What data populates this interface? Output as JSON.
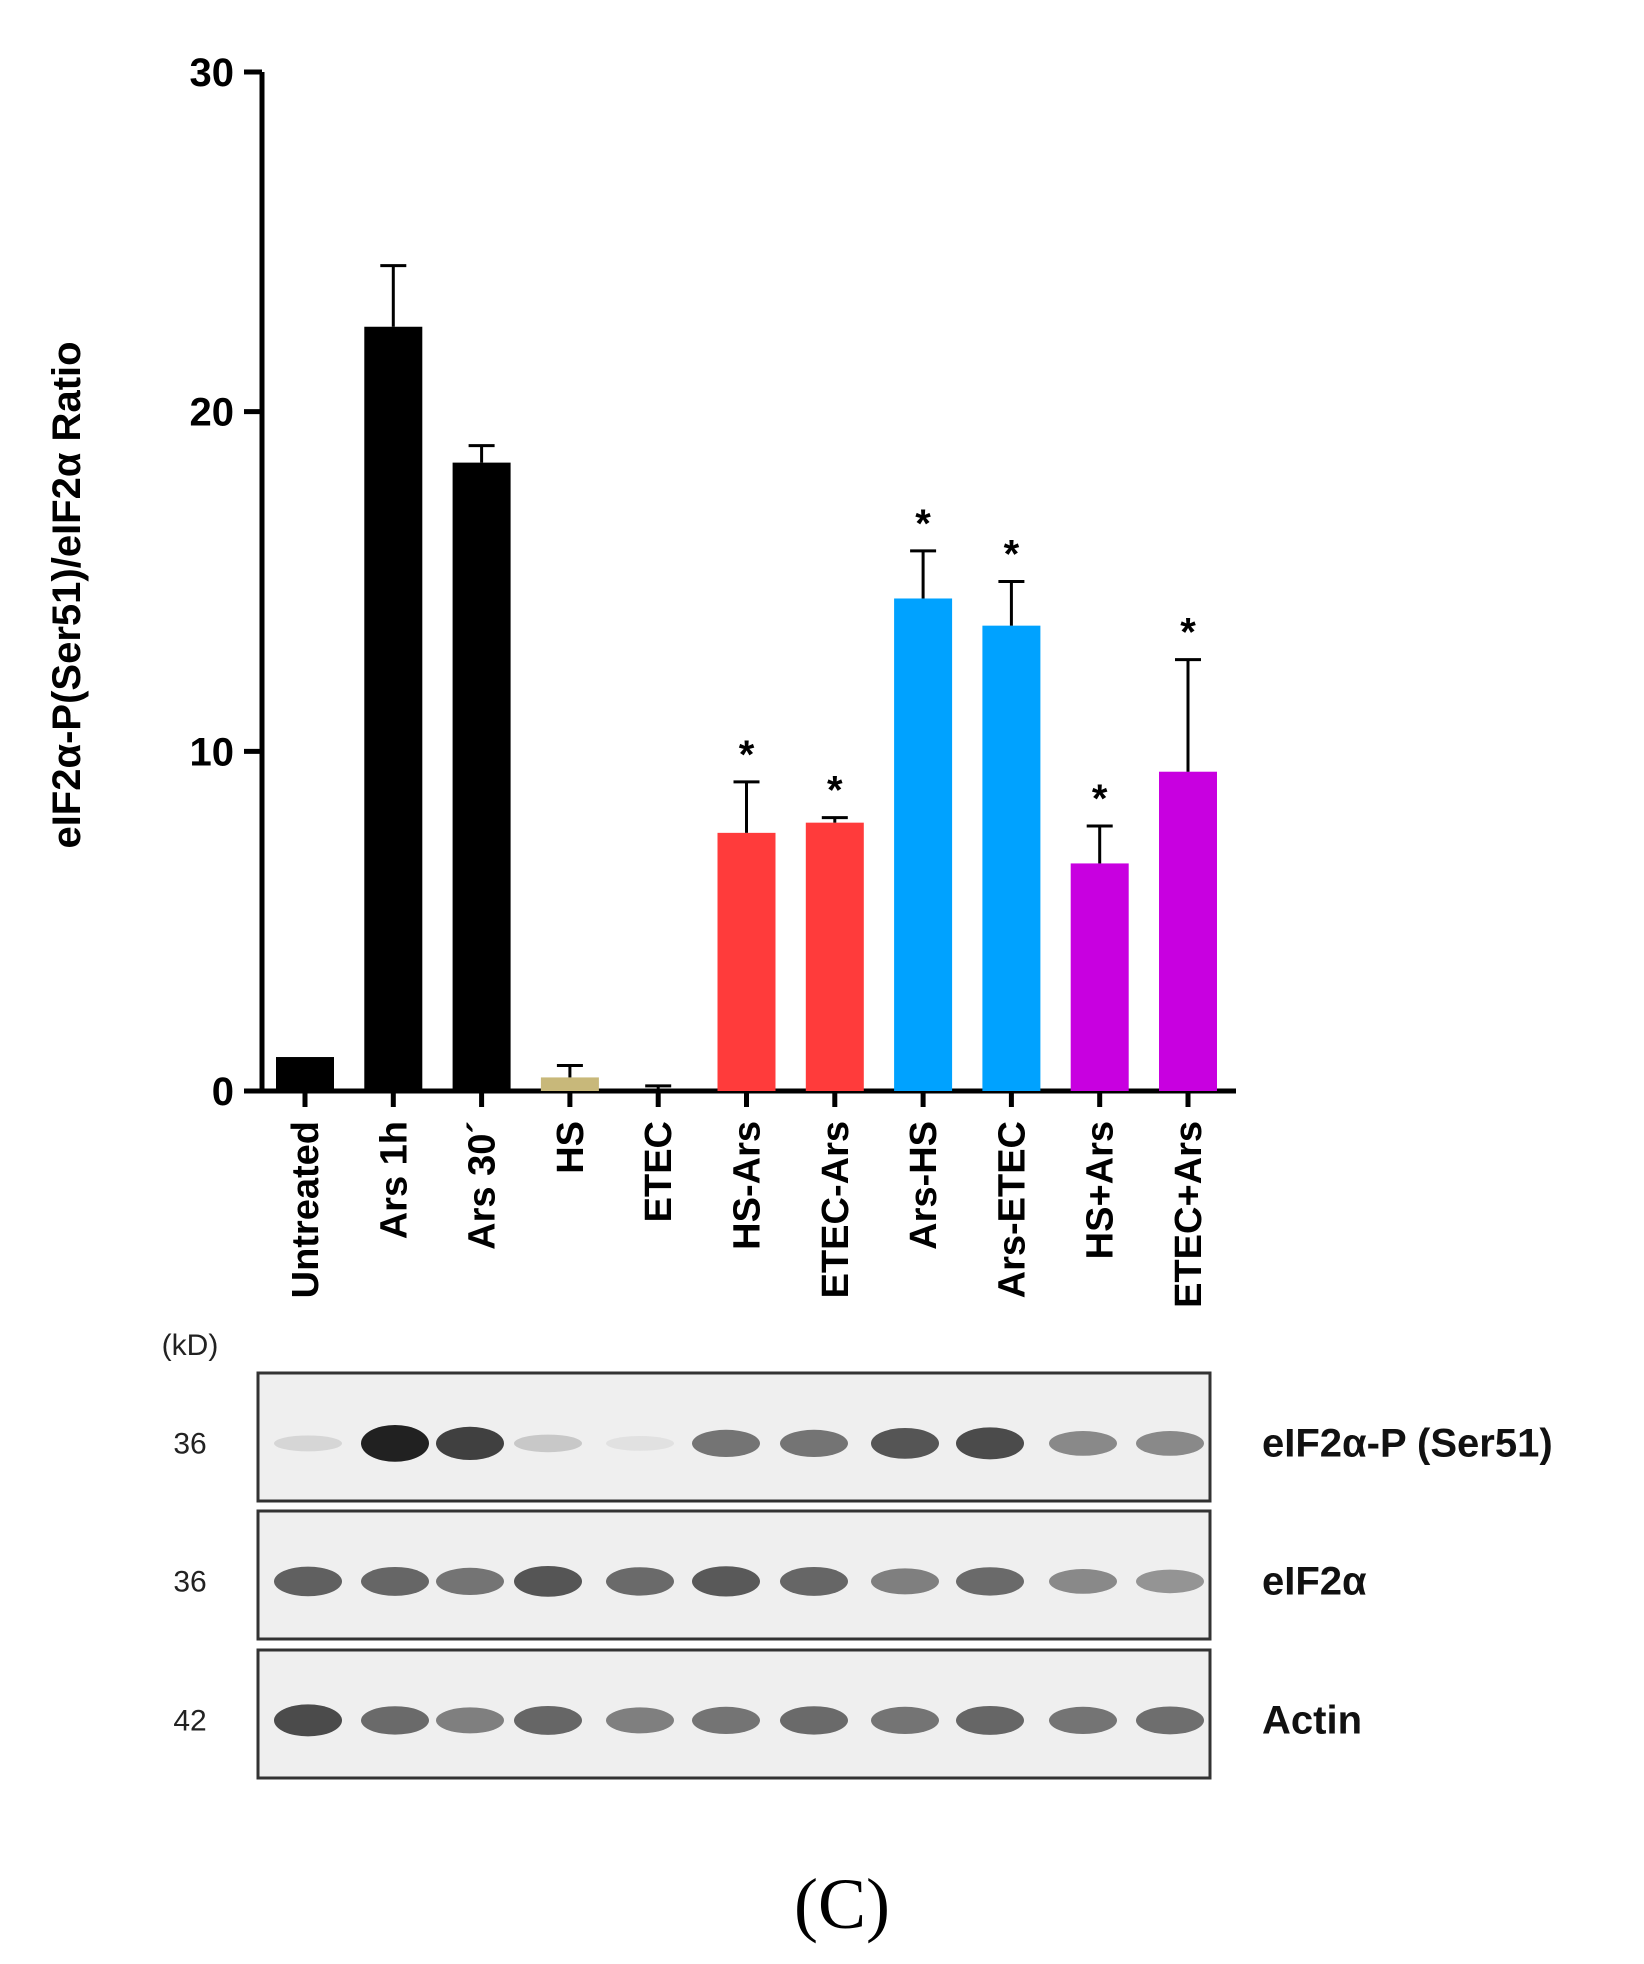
{
  "chart_data": {
    "type": "bar",
    "ylabel": "eIF2α-P(Ser51)/eIF2α Ratio",
    "ylim": [
      0,
      30
    ],
    "yticks": [
      0,
      10,
      20,
      30
    ],
    "categories": [
      "Untreated",
      "Ars 1h",
      "Ars 30´",
      "HS",
      "ETEC",
      "HS-Ars",
      "ETEC-Ars",
      "Ars-HS",
      "Ars-ETEC",
      "HS+Ars",
      "ETEC+Ars"
    ],
    "values": [
      1.0,
      22.5,
      18.5,
      0.4,
      0.05,
      7.6,
      7.9,
      14.5,
      13.7,
      6.7,
      9.4
    ],
    "errors": [
      0,
      1.8,
      0.5,
      0.35,
      0.1,
      1.5,
      0.15,
      1.4,
      1.3,
      1.1,
      3.3
    ],
    "significance": [
      "",
      "",
      "",
      "",
      "",
      "*",
      "*",
      "*",
      "*",
      "*",
      "*"
    ],
    "colors": [
      "#000000",
      "#000000",
      "#000000",
      "#c8b87a",
      "#000000",
      "#ff3b3b",
      "#ff3b3b",
      "#00a2ff",
      "#00a2ff",
      "#c800e0",
      "#c800e0"
    ],
    "grid": false,
    "legend": "none"
  },
  "blot": {
    "kd_header": "(kD)",
    "rows": [
      {
        "kd": "36",
        "label": "eIF2α-P (Ser51)",
        "intensity": [
          0.08,
          0.95,
          0.8,
          0.15,
          0.03,
          0.55,
          0.55,
          0.7,
          0.75,
          0.45,
          0.45
        ]
      },
      {
        "kd": "36",
        "label": "eIF2α",
        "intensity": [
          0.65,
          0.62,
          0.55,
          0.7,
          0.6,
          0.68,
          0.62,
          0.5,
          0.6,
          0.45,
          0.4
        ]
      },
      {
        "kd": "42",
        "label": "Actin",
        "intensity": [
          0.75,
          0.6,
          0.5,
          0.62,
          0.5,
          0.55,
          0.6,
          0.55,
          0.62,
          0.55,
          0.58
        ]
      }
    ]
  },
  "panel_letter": "(C)"
}
